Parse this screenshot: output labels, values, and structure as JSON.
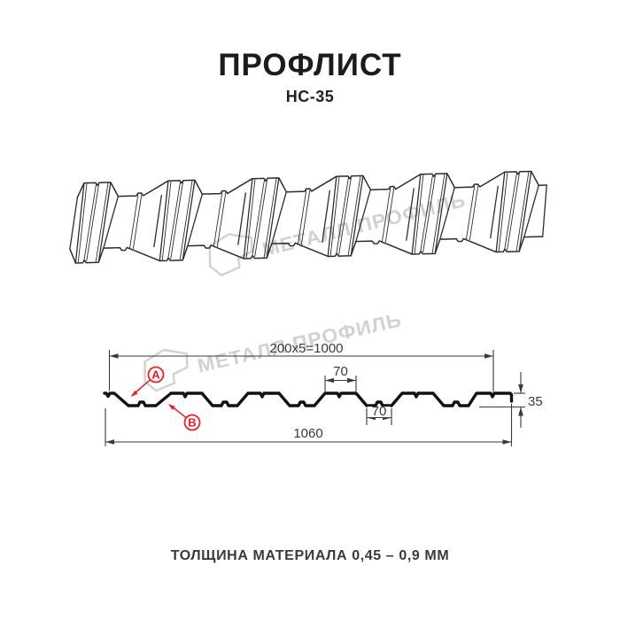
{
  "header": {
    "title": "ПРОФЛИСТ",
    "subtitle": "НС-35"
  },
  "watermark": {
    "brand": "МЕТАЛЛ ПРОФИЛЬ"
  },
  "cross_section": {
    "dim_pitch": "200x5=1000",
    "dim_top_flange": "70",
    "dim_bottom_flange": "70",
    "dim_height": "35",
    "dim_overall_width": "1060",
    "label_a": "A",
    "label_b": "B"
  },
  "footer": {
    "thickness_note": "ТОЛЩИНА МАТЕРИАЛА 0,45 – 0,9 ММ"
  },
  "colors": {
    "red": "#e31e24",
    "line": "#2d2d2d",
    "profile": "#111111",
    "dim": "#3a3a3a",
    "watermark": "#d2d2d2"
  }
}
